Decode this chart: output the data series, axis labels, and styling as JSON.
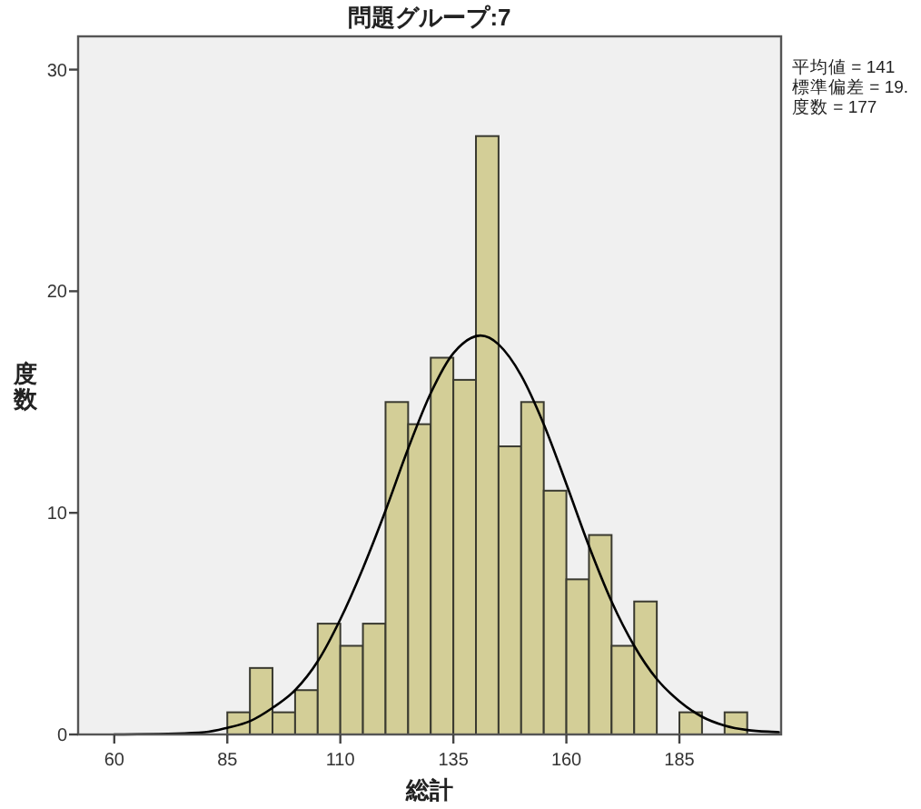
{
  "chart_data": {
    "type": "histogram",
    "title": "問題グループ:7",
    "xlabel": "総計",
    "ylabel": "度数",
    "xlim": [
      52,
      207.5
    ],
    "ylim": [
      0,
      31.5
    ],
    "xticks": [
      60,
      85,
      110,
      135,
      160,
      185
    ],
    "yticks": [
      0,
      10,
      20,
      30
    ],
    "annotations": [
      "平均値 = 141",
      "標準偏差 = 19.",
      "度数 = 177"
    ],
    "series": [
      {
        "type": "histogram",
        "color": "#d3ce97",
        "bins": [
          85,
          90,
          95,
          100,
          105,
          110,
          115,
          120,
          125,
          130,
          135,
          140,
          145,
          150,
          155,
          160,
          165,
          170,
          175,
          180,
          185,
          190,
          195,
          200
        ],
        "values": [
          1,
          3,
          1,
          2,
          5,
          4,
          5,
          15,
          14,
          17,
          16,
          27,
          13,
          15,
          11,
          7,
          9,
          4,
          6,
          0,
          1,
          0,
          1
        ]
      },
      {
        "type": "line",
        "color": "#000000",
        "x": [
          60,
          80,
          85,
          90,
          95,
          100,
          105,
          110,
          115,
          120,
          125,
          130,
          135,
          141,
          145,
          150,
          155,
          160,
          165,
          170,
          175,
          180,
          185,
          190,
          195,
          200,
          207
        ],
        "values": [
          0.0,
          0.1,
          0.3,
          0.6,
          1.2,
          2.0,
          3.3,
          5.2,
          7.5,
          10.1,
          12.9,
          15.4,
          17.2,
          18.0,
          17.6,
          16.2,
          14.0,
          11.3,
          8.5,
          6.0,
          4.0,
          2.5,
          1.5,
          0.8,
          0.4,
          0.2,
          0.1
        ]
      }
    ]
  }
}
